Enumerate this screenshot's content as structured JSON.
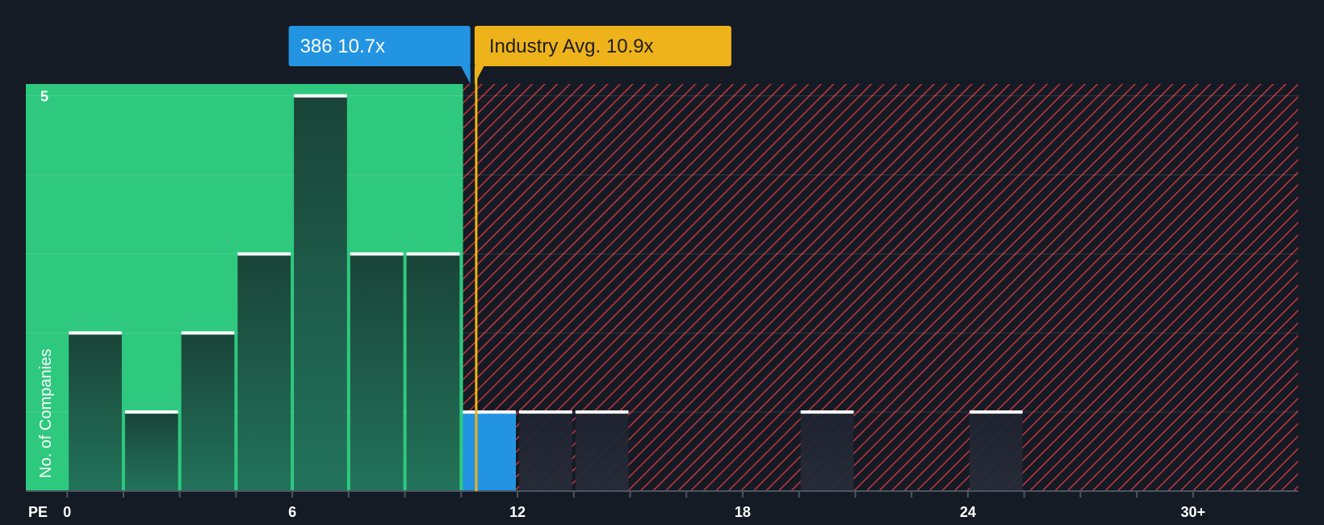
{
  "chart_data": {
    "type": "bar",
    "xlabel": "PE",
    "ylabel": "No. of Companies",
    "x_ticks": [
      {
        "value": 0,
        "label": "0"
      },
      {
        "value": 6,
        "label": "6"
      },
      {
        "value": 12,
        "label": "12"
      },
      {
        "value": 18,
        "label": "18"
      },
      {
        "value": 24,
        "label": "24"
      },
      {
        "value": 30,
        "label": "30+"
      }
    ],
    "xlim": [
      -1.1,
      32.8
    ],
    "y_ticks": [
      {
        "value": 5,
        "label": "5"
      }
    ],
    "ylim": [
      0,
      5.15
    ],
    "bin_width": 1.5,
    "bins": [
      {
        "start": 0,
        "count": 2
      },
      {
        "start": 1.5,
        "count": 1
      },
      {
        "start": 3,
        "count": 2
      },
      {
        "start": 4.5,
        "count": 3
      },
      {
        "start": 6,
        "count": 5
      },
      {
        "start": 7.5,
        "count": 3
      },
      {
        "start": 9,
        "count": 3
      },
      {
        "start": 10.5,
        "count": 1,
        "highlight": true
      },
      {
        "start": 12,
        "count": 1
      },
      {
        "start": 13.5,
        "count": 1
      },
      {
        "start": 19.5,
        "count": 1
      },
      {
        "start": 24,
        "count": 1
      }
    ],
    "company": {
      "label": "386 10.7x",
      "value": 10.7
    },
    "industry_avg": {
      "label": "Industry Avg. 10.9x",
      "value": 10.9
    },
    "grid": true,
    "colors": {
      "background": "#151b24",
      "undervalued": "#2ec97e",
      "bar": "#1d4a3e",
      "bar_over": "#1e2631",
      "bar_cap": "#ffffff",
      "highlight_bar": "#2394e1",
      "company_callout": "#2394e1",
      "industry_callout": "#eeb31a",
      "hatch": "#c8343f",
      "axis": "#2e3846"
    }
  }
}
